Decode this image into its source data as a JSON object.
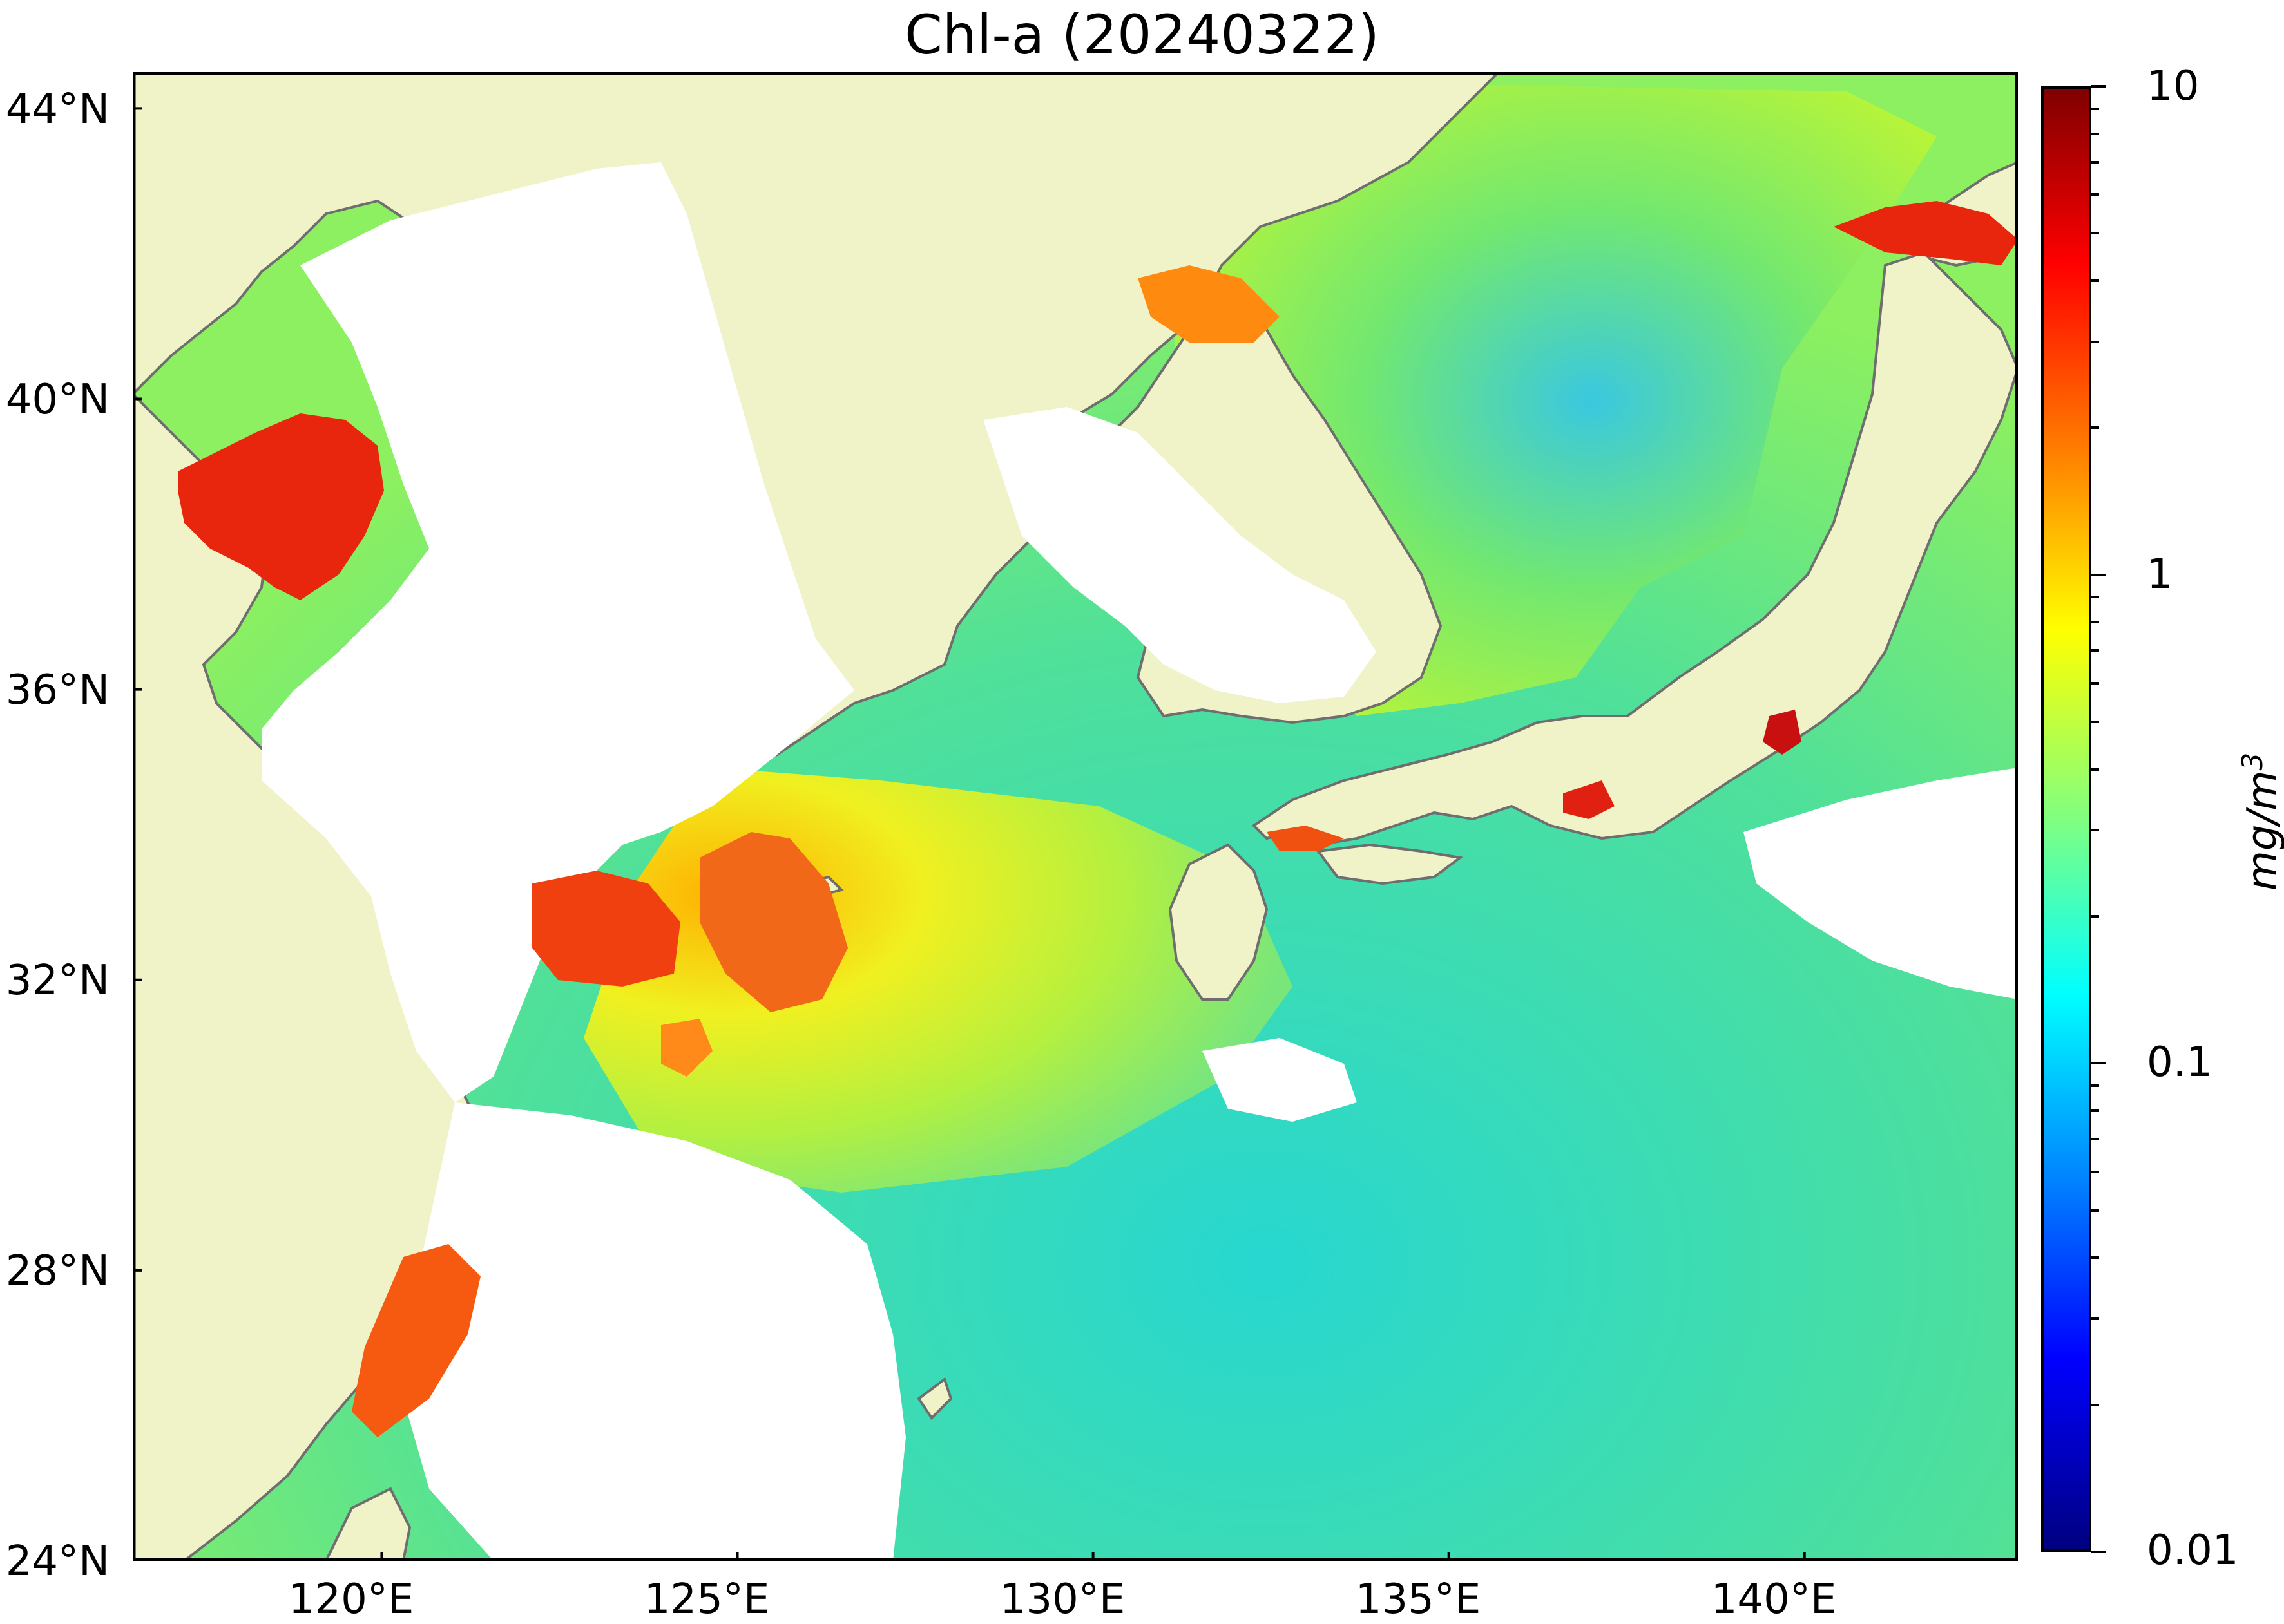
{
  "title": "Chl-a (20240322)",
  "map": {
    "lon_range": [
      116.5,
      143.0
    ],
    "lat_range": [
      24.0,
      44.5
    ],
    "land_color": "#f0f2c8",
    "coast_color": "#6e6e6e",
    "no_data_color": "#ffffff",
    "lat_ticks": [
      {
        "value": 44,
        "label": "44°N"
      },
      {
        "value": 40,
        "label": "40°N"
      },
      {
        "value": 36,
        "label": "36°N"
      },
      {
        "value": 32,
        "label": "32°N"
      },
      {
        "value": 28,
        "label": "28°N"
      },
      {
        "value": 24,
        "label": "24°N"
      }
    ],
    "lon_ticks": [
      {
        "value": 120,
        "label": "120°E"
      },
      {
        "value": 125,
        "label": "125°E"
      },
      {
        "value": 130,
        "label": "130°E"
      },
      {
        "value": 135,
        "label": "135°E"
      },
      {
        "value": 140,
        "label": "140°E"
      }
    ]
  },
  "colorbar": {
    "scale": "log",
    "min": 0.01,
    "max": 10,
    "colormap": "jet",
    "tick_labels": [
      {
        "value": 10,
        "label": "10"
      },
      {
        "value": 1,
        "label": "1"
      },
      {
        "value": 0.1,
        "label": "0.1"
      },
      {
        "value": 0.01,
        "label": "0.01"
      }
    ],
    "unit_base": "mg/m",
    "unit_exp": "3"
  }
}
